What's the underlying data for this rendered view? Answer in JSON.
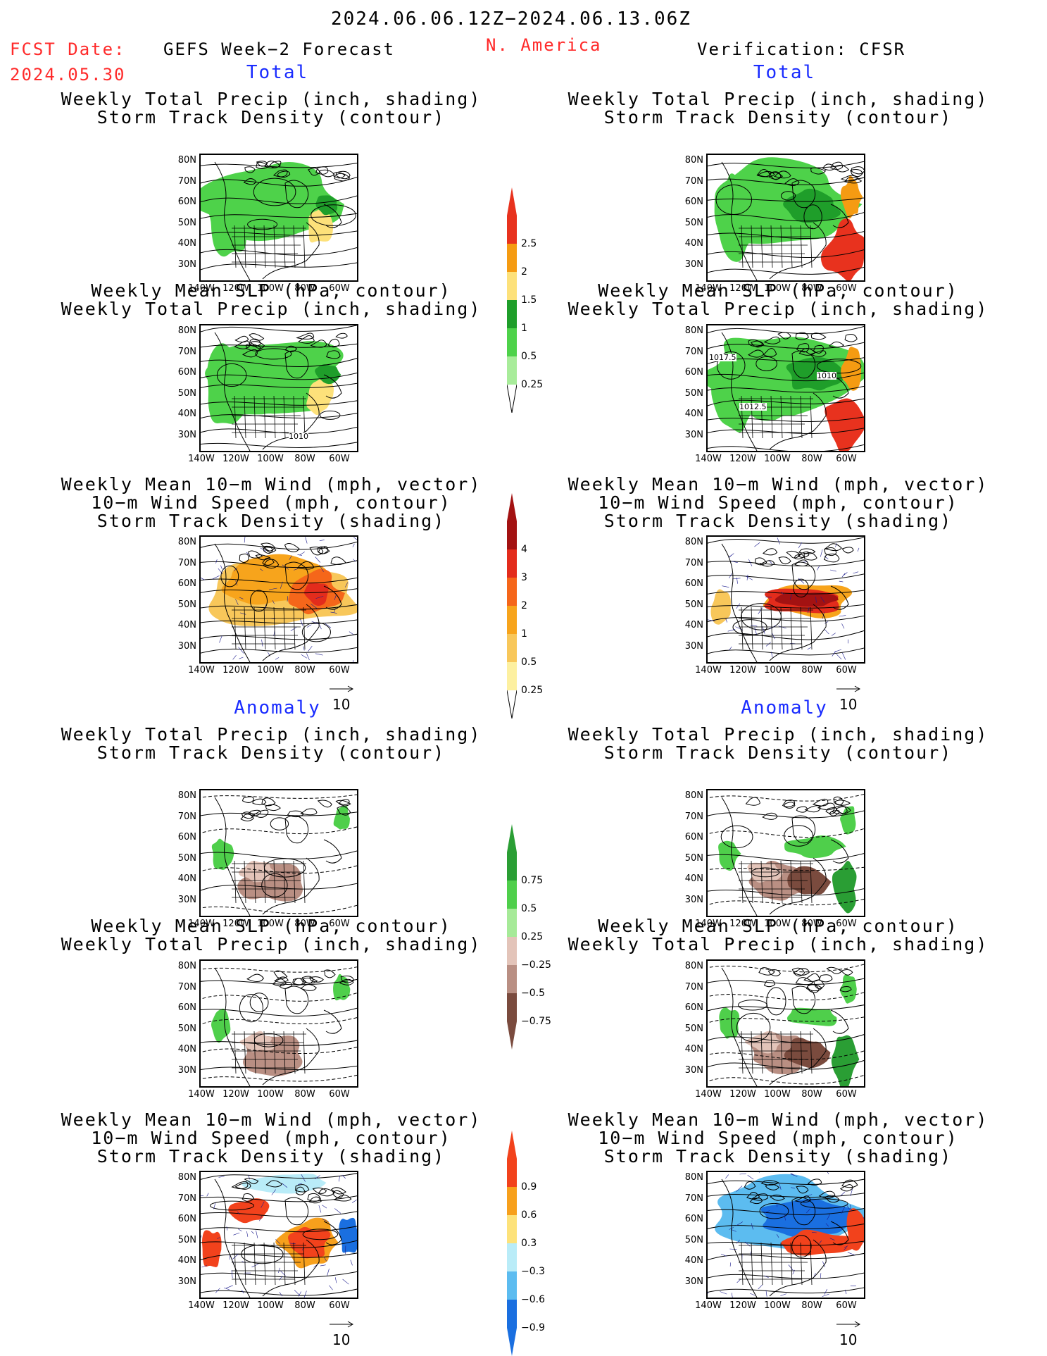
{
  "header": {
    "date_range": "2024.06.06.12Z−2024.06.13.06Z",
    "fcst_label": "FCST Date:",
    "fcst_date": "2024.05.30",
    "left_title": "GEFS Week−2 Forecast",
    "region": "N. America",
    "right_title": "Verification: CFSR"
  },
  "sections": {
    "total": "Total",
    "anomaly": "Anomaly"
  },
  "panel_titles": {
    "precip_track": [
      "Weekly Total Precip (inch, shading)",
      "Storm Track Density (contour)"
    ],
    "slp_precip": [
      "Weekly Mean SLP (hPa, contour)",
      "Weekly Total Precip (inch, shading)"
    ],
    "wind_track": [
      "Weekly Mean 10−m Wind (mph, vector)",
      "10−m Wind Speed (mph, contour)",
      "Storm Track Density (shading)"
    ]
  },
  "axes": {
    "lat": [
      "80N",
      "70N",
      "60N",
      "50N",
      "40N",
      "30N"
    ],
    "lon": [
      "140W",
      "120W",
      "100W",
      "80W",
      "60W"
    ]
  },
  "vector_ref": "10",
  "map_labels": {
    "gefs_slp_1010": "1010",
    "cfsr_slp_1017": "1017.5",
    "cfsr_slp_1010": "1010",
    "cfsr_slp_1012": "1012.5"
  },
  "colorbars": {
    "precip_total": [
      {
        "label": "2.5",
        "color": "#e8321e"
      },
      {
        "label": "2",
        "color": "#f59b12"
      },
      {
        "label": "1.5",
        "color": "#fde17a"
      },
      {
        "label": "1",
        "color": "#1f9e2a"
      },
      {
        "label": "0.5",
        "color": "#4ed24a"
      },
      {
        "label": "0.25",
        "color": "#a8ec9a"
      }
    ],
    "track_total": [
      {
        "label": "4",
        "color": "#a31212"
      },
      {
        "label": "3",
        "color": "#e32c1c"
      },
      {
        "label": "2",
        "color": "#f5661a"
      },
      {
        "label": "1",
        "color": "#f7a41c"
      },
      {
        "label": "0.5",
        "color": "#f8c75a"
      },
      {
        "label": "0.25",
        "color": "#fdf0a0"
      }
    ],
    "precip_anom": [
      {
        "label": "0.75",
        "color": "#2a9e34"
      },
      {
        "label": "0.5",
        "color": "#4fcf4b"
      },
      {
        "label": "0.25",
        "color": "#a6ea98"
      },
      {
        "label": "−0.25",
        "color": "#e3c4b9"
      },
      {
        "label": "−0.5",
        "color": "#b98f83"
      },
      {
        "label": "−0.75",
        "color": "#7a4b3e"
      }
    ],
    "track_anom": [
      {
        "label": "0.9",
        "color": "#f2421c"
      },
      {
        "label": "0.6",
        "color": "#f7a01c"
      },
      {
        "label": "0.3",
        "color": "#fde27a"
      },
      {
        "label": "−0.3",
        "color": "#b9ecf8"
      },
      {
        "label": "−0.6",
        "color": "#5cbcf0"
      },
      {
        "label": "−0.9",
        "color": "#1a6fe0"
      }
    ]
  }
}
